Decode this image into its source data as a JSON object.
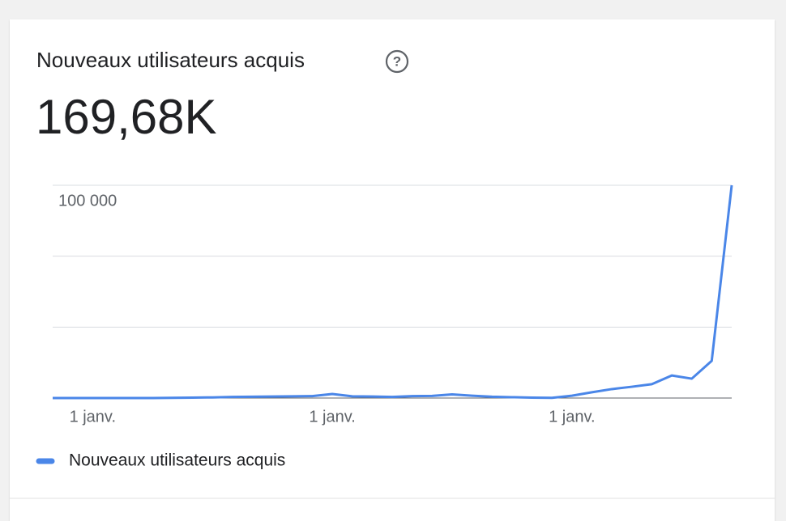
{
  "chart_data": {
    "type": "line",
    "title": "Nouveaux utilisateurs acquis",
    "total": "169,68K",
    "categories": [
      null,
      null,
      "1 janv.",
      null,
      null,
      null,
      null,
      null,
      null,
      null,
      null,
      null,
      null,
      null,
      "1 janv.",
      null,
      null,
      null,
      null,
      null,
      null,
      null,
      null,
      null,
      null,
      null,
      "1 janv.",
      null,
      null,
      null,
      null,
      null,
      null,
      null,
      null
    ],
    "series": [
      {
        "name": "Nouveaux utilisateurs acquis",
        "color": "#4a86e8",
        "values": [
          0,
          0,
          0,
          0,
          0,
          0,
          100,
          200,
          300,
          500,
          600,
          700,
          800,
          900,
          1900,
          800,
          700,
          500,
          900,
          1000,
          1700,
          1100,
          600,
          400,
          200,
          100,
          1100,
          2700,
          4200,
          5300,
          6500,
          10600,
          9100,
          17500,
          100000
        ]
      }
    ],
    "ylim": [
      0,
      100000
    ],
    "yticks": [
      {
        "value": 0,
        "label": null
      },
      {
        "value": 33333,
        "label": null
      },
      {
        "value": 66667,
        "label": null
      },
      {
        "value": 100000,
        "label": "100 000"
      }
    ],
    "grid": true
  }
}
